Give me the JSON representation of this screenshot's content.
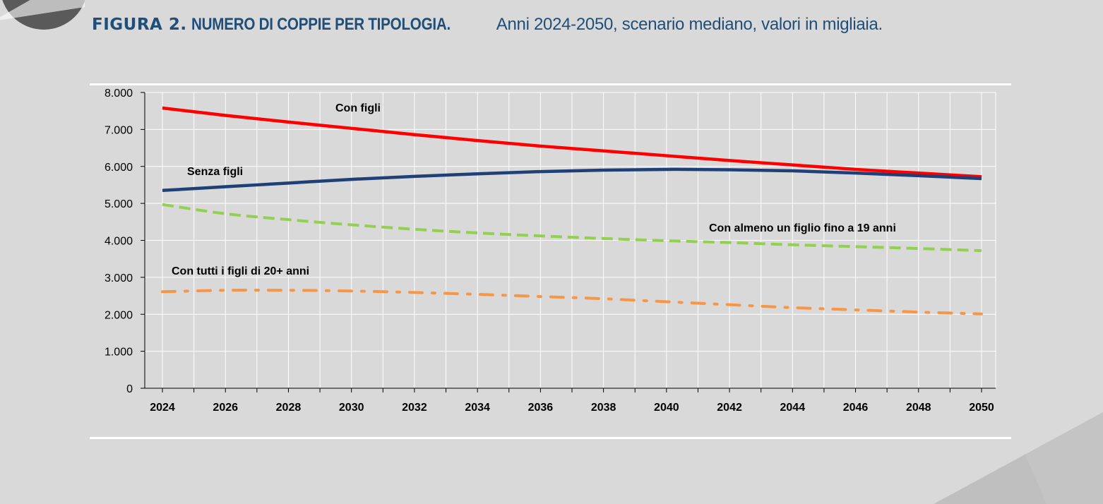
{
  "header": {
    "figure_label": "FIGURA 2.",
    "title_bold": "NUMERO DI COPPIE PER TIPOLOGIA.",
    "title_rest": "Anni 2024-2050, scenario mediano, valori in migliaia."
  },
  "colors": {
    "background": "#d9d9d9",
    "title": "#1f4e79",
    "gridline": "#ffffff"
  },
  "chart_data": {
    "type": "line",
    "title": "NUMERO DI COPPIE PER TIPOLOGIA.",
    "subtitle": "Anni 2024-2050, scenario mediano, valori in migliaia.",
    "xlabel": "",
    "ylabel": "",
    "x": [
      2024,
      2026,
      2028,
      2030,
      2032,
      2034,
      2036,
      2038,
      2040,
      2042,
      2044,
      2046,
      2048,
      2050
    ],
    "x_tick_labels": [
      "2024",
      "2026",
      "2028",
      "2030",
      "2032",
      "2034",
      "2036",
      "2038",
      "2040",
      "2042",
      "2044",
      "2046",
      "2048",
      "2050"
    ],
    "ylim": [
      0,
      8000
    ],
    "y_ticks": [
      0,
      1000,
      2000,
      3000,
      4000,
      5000,
      6000,
      7000,
      8000
    ],
    "y_tick_labels": [
      "0",
      "1.000",
      "2.000",
      "3.000",
      "4.000",
      "5.000",
      "6.000",
      "7.000",
      "8.000"
    ],
    "grid": true,
    "legend": "inline labels",
    "series": [
      {
        "name": "Con figli",
        "color": "#ff0000",
        "style": "solid",
        "values": [
          7580,
          7380,
          7200,
          7030,
          6860,
          6700,
          6550,
          6420,
          6290,
          6160,
          6040,
          5920,
          5820,
          5720
        ]
      },
      {
        "name": "Senza figli",
        "color": "#1f3f77",
        "style": "solid",
        "values": [
          5350,
          5450,
          5550,
          5650,
          5730,
          5800,
          5860,
          5900,
          5920,
          5910,
          5880,
          5820,
          5750,
          5670
        ]
      },
      {
        "name": "Con almeno un figlio fino a 19 anni",
        "color": "#92d050",
        "style": "dashed",
        "values": [
          4970,
          4720,
          4560,
          4420,
          4300,
          4200,
          4120,
          4050,
          3990,
          3940,
          3880,
          3830,
          3780,
          3720
        ]
      },
      {
        "name": "Con tutti i figli di 20+ anni",
        "color": "#f79646",
        "style": "dashdot",
        "values": [
          2610,
          2650,
          2650,
          2630,
          2590,
          2540,
          2480,
          2420,
          2340,
          2260,
          2180,
          2120,
          2060,
          2010
        ]
      }
    ]
  }
}
